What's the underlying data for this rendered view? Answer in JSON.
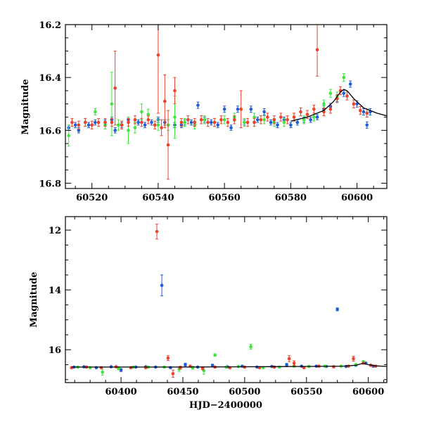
{
  "colors": {
    "blue": "#1f5fd6",
    "green": "#3ee63e",
    "red": "#f0402a",
    "model": "#000000"
  },
  "chart_data": [
    {
      "type": "scatter",
      "title": "",
      "xlabel": "",
      "ylabel": "Magnitude",
      "xlim": [
        60512,
        60609
      ],
      "ylim": [
        16.2,
        16.82
      ],
      "y_inverted": true,
      "xticks": [
        60520,
        60540,
        60560,
        60580,
        60600
      ],
      "xtick_labels": [
        "60520",
        "60540",
        "60560",
        "60580",
        "60600"
      ],
      "yticks": [
        16.2,
        16.4,
        16.6,
        16.8
      ],
      "ytick_labels": [
        "16.2",
        "16.4",
        "16.6",
        "16.8"
      ],
      "grid": false,
      "model_curve": {
        "color": "model",
        "x": [
          60580,
          60585,
          60590,
          60593,
          60595,
          60596,
          60597,
          60599,
          60602,
          60606,
          60609
        ],
        "y": [
          16.565,
          16.55,
          16.525,
          16.49,
          16.455,
          16.445,
          16.45,
          16.48,
          16.515,
          16.535,
          16.545
        ]
      },
      "series": [
        {
          "color": "blue",
          "x": [
            60513,
            60515,
            60516,
            60519,
            60521,
            60524,
            60526,
            60527,
            60529,
            60531,
            60534,
            60536,
            60538,
            60540,
            60542,
            60545,
            60547,
            60548,
            60550,
            60552,
            60554,
            60556,
            60558,
            60560,
            60562,
            60564,
            60566,
            60568,
            60570,
            60572,
            60574,
            60576,
            60578,
            60580,
            60582,
            60584,
            60586,
            60588,
            60590,
            60592,
            60594,
            60596,
            60598,
            60600,
            60602,
            60603,
            60604
          ],
          "y": [
            16.59,
            16.58,
            16.6,
            16.58,
            16.57,
            16.57,
            16.56,
            16.6,
            16.58,
            16.56,
            16.57,
            16.58,
            16.57,
            16.56,
            16.57,
            16.58,
            16.58,
            16.57,
            16.57,
            16.505,
            16.56,
            16.57,
            16.58,
            16.52,
            16.59,
            16.52,
            16.57,
            16.52,
            16.56,
            16.53,
            16.57,
            16.58,
            16.56,
            16.58,
            16.57,
            16.56,
            16.56,
            16.55,
            16.52,
            16.51,
            16.48,
            16.46,
            16.425,
            16.5,
            16.53,
            16.58,
            16.53
          ],
          "err": [
            0.01,
            0.01,
            0.01,
            0.01,
            0.01,
            0.01,
            0.01,
            0.01,
            0.01,
            0.01,
            0.01,
            0.01,
            0.01,
            0.01,
            0.01,
            0.01,
            0.01,
            0.01,
            0.01,
            0.012,
            0.01,
            0.01,
            0.01,
            0.012,
            0.01,
            0.012,
            0.01,
            0.012,
            0.01,
            0.012,
            0.01,
            0.01,
            0.01,
            0.01,
            0.01,
            0.01,
            0.01,
            0.01,
            0.012,
            0.012,
            0.012,
            0.012,
            0.012,
            0.012,
            0.012,
            0.012,
            0.012
          ]
        },
        {
          "color": "green",
          "x": [
            60513,
            60518,
            60521,
            60524,
            60526,
            60528,
            60531,
            60533,
            60535,
            60537,
            60540,
            60543,
            60545,
            60548,
            60551,
            60554,
            60557,
            60560,
            60563,
            60566,
            60569,
            60572,
            60575,
            60578,
            60581,
            60584,
            60587,
            60590,
            60592,
            60594,
            60596
          ],
          "y": [
            16.62,
            16.57,
            16.53,
            16.58,
            16.5,
            16.58,
            16.6,
            16.59,
            16.53,
            16.54,
            16.58,
            16.58,
            16.55,
            16.57,
            16.58,
            16.56,
            16.57,
            16.56,
            16.55,
            16.57,
            16.55,
            16.56,
            16.57,
            16.57,
            16.55,
            16.56,
            16.55,
            16.5,
            16.46,
            16.47,
            16.4
          ],
          "err": [
            0.04,
            0.015,
            0.012,
            0.015,
            0.12,
            0.02,
            0.05,
            0.02,
            0.03,
            0.02,
            0.02,
            0.02,
            0.08,
            0.015,
            0.015,
            0.015,
            0.015,
            0.015,
            0.015,
            0.015,
            0.015,
            0.015,
            0.015,
            0.015,
            0.015,
            0.015,
            0.015,
            0.015,
            0.015,
            0.015,
            0.015
          ]
        },
        {
          "color": "red",
          "x": [
            60514,
            60516,
            60518,
            60520,
            60522,
            60524,
            60526,
            60527,
            60529,
            60531,
            60533,
            60535,
            60537,
            60539,
            60540,
            60541,
            60542,
            60543,
            60545,
            60547,
            60549,
            60551,
            60553,
            60555,
            60557,
            60559,
            60561,
            60563,
            60565,
            60567,
            60569,
            60571,
            60573,
            60575,
            60577,
            60579,
            60581,
            60583,
            60585,
            60587,
            60588,
            60590,
            60592,
            60594,
            60595,
            60597,
            60599,
            60601,
            60603
          ],
          "y": [
            16.57,
            16.58,
            16.57,
            16.58,
            16.57,
            16.57,
            16.57,
            16.44,
            16.58,
            16.57,
            16.56,
            16.57,
            16.56,
            16.58,
            16.315,
            16.59,
            16.49,
            16.655,
            16.45,
            16.57,
            16.56,
            16.57,
            16.56,
            16.57,
            16.57,
            16.56,
            16.57,
            16.56,
            16.52,
            16.57,
            16.57,
            16.56,
            16.55,
            16.56,
            16.55,
            16.56,
            16.55,
            16.53,
            16.54,
            16.52,
            16.295,
            16.53,
            16.52,
            16.48,
            16.45,
            16.47,
            16.5,
            16.525,
            16.535
          ],
          "err": [
            0.015,
            0.015,
            0.015,
            0.015,
            0.015,
            0.015,
            0.015,
            0.14,
            0.015,
            0.015,
            0.015,
            0.015,
            0.015,
            0.015,
            0.22,
            0.03,
            0.1,
            0.13,
            0.05,
            0.015,
            0.015,
            0.015,
            0.015,
            0.015,
            0.015,
            0.015,
            0.015,
            0.015,
            0.07,
            0.015,
            0.015,
            0.015,
            0.015,
            0.015,
            0.015,
            0.015,
            0.015,
            0.015,
            0.015,
            0.015,
            0.1,
            0.015,
            0.015,
            0.015,
            0.015,
            0.015,
            0.015,
            0.015,
            0.015
          ]
        }
      ]
    },
    {
      "type": "scatter",
      "title": "",
      "xlabel": "HJD−2400000",
      "ylabel": "Magnitude",
      "xlim": [
        60355,
        60615
      ],
      "ylim": [
        11.55,
        17.1
      ],
      "y_inverted": true,
      "xticks": [
        60400,
        60450,
        60500,
        60550,
        60600
      ],
      "xtick_labels": [
        "60400",
        "60450",
        "60500",
        "60550",
        "60600"
      ],
      "yticks": [
        12,
        14,
        16
      ],
      "ytick_labels": [
        "12",
        "14",
        "16"
      ],
      "grid": false,
      "model_curve": {
        "color": "model",
        "x": [
          60360,
          60400,
          60450,
          60500,
          60550,
          60580,
          60590,
          60596,
          60600,
          60606,
          60615
        ],
        "y": [
          16.58,
          16.58,
          16.58,
          16.57,
          16.56,
          16.55,
          16.52,
          16.45,
          16.5,
          16.54,
          16.56
        ]
      },
      "series": [
        {
          "color": "blue",
          "x": [
            60362,
            60370,
            60380,
            60392,
            60400,
            60412,
            60420,
            60428,
            60433,
            60440,
            60452,
            60462,
            60474,
            60486,
            60498,
            60510,
            60522,
            60534,
            60546,
            60558,
            60566,
            60575,
            60582,
            60590,
            60598,
            60604
          ],
          "y": [
            16.58,
            16.57,
            16.6,
            16.57,
            16.68,
            16.58,
            16.57,
            16.58,
            13.85,
            16.6,
            16.5,
            16.58,
            16.52,
            16.57,
            16.55,
            16.58,
            16.56,
            16.5,
            16.55,
            16.55,
            16.56,
            14.65,
            16.56,
            16.52,
            16.45,
            16.55
          ],
          "err": [
            0.02,
            0.02,
            0.03,
            0.02,
            0.05,
            0.02,
            0.02,
            0.02,
            0.35,
            0.03,
            0.05,
            0.02,
            0.03,
            0.02,
            0.02,
            0.02,
            0.02,
            0.04,
            0.02,
            0.02,
            0.02,
            0.05,
            0.02,
            0.03,
            0.03,
            0.02
          ]
        },
        {
          "color": "green",
          "x": [
            60365,
            60375,
            60385,
            60398,
            60410,
            60422,
            60435,
            60447,
            60458,
            60467,
            60476,
            60485,
            60495,
            60505,
            60515,
            60528,
            60540,
            60552,
            60565,
            60578,
            60590,
            60596
          ],
          "y": [
            16.58,
            16.6,
            16.75,
            16.62,
            16.58,
            16.58,
            16.58,
            16.65,
            16.6,
            16.7,
            16.18,
            16.58,
            16.56,
            15.9,
            16.6,
            16.58,
            16.55,
            16.56,
            16.55,
            16.55,
            16.5,
            16.4
          ],
          "err": [
            0.03,
            0.03,
            0.1,
            0.05,
            0.03,
            0.03,
            0.03,
            0.08,
            0.05,
            0.12,
            0.04,
            0.03,
            0.03,
            0.08,
            0.03,
            0.03,
            0.03,
            0.03,
            0.03,
            0.03,
            0.03,
            0.03
          ]
        },
        {
          "color": "red",
          "x": [
            60360,
            60372,
            60384,
            60396,
            60408,
            60420,
            60429,
            60438,
            60442,
            60448,
            60456,
            60466,
            60476,
            60488,
            60500,
            60512,
            60524,
            60536,
            60540,
            60548,
            60560,
            60572,
            60584,
            60588,
            60596,
            60602,
            60606
          ],
          "y": [
            16.6,
            16.58,
            16.6,
            16.57,
            16.6,
            16.6,
            12.05,
            16.28,
            16.8,
            16.6,
            16.55,
            16.62,
            16.58,
            16.6,
            16.58,
            16.6,
            16.58,
            16.3,
            16.45,
            16.6,
            16.55,
            16.57,
            16.55,
            16.3,
            16.45,
            16.52,
            16.55
          ],
          "err": [
            0.03,
            0.03,
            0.03,
            0.03,
            0.03,
            0.03,
            0.25,
            0.08,
            0.12,
            0.05,
            0.03,
            0.05,
            0.03,
            0.03,
            0.03,
            0.03,
            0.03,
            0.1,
            0.08,
            0.03,
            0.03,
            0.03,
            0.03,
            0.08,
            0.03,
            0.03,
            0.03
          ]
        }
      ]
    }
  ]
}
